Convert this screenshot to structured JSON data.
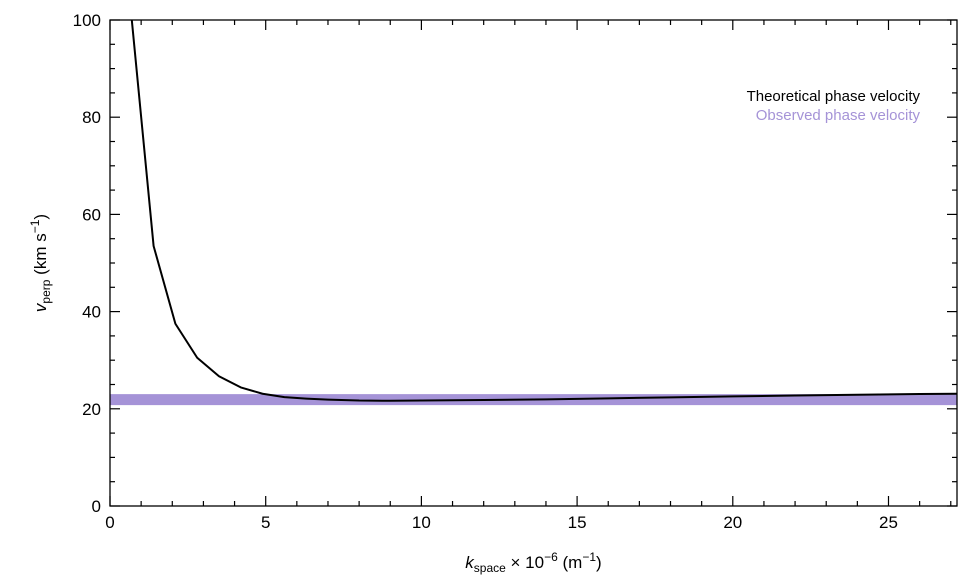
{
  "chart_data": {
    "type": "line",
    "xlabel": {
      "main": "k",
      "sub": "space",
      "rest": " × 10",
      "sup1": "−6",
      "unit_open": " (m",
      "sup2": "−1",
      "unit_close": ")"
    },
    "ylabel": {
      "main": "v",
      "sub": "perp",
      "unit_open": " (km s",
      "sup": "−1",
      "unit_close": ")"
    },
    "xlim": [
      0,
      27.2
    ],
    "ylim": [
      0,
      100
    ],
    "x_ticks": [
      {
        "value": 0,
        "label": "0"
      },
      {
        "value": 5,
        "label": "5"
      },
      {
        "value": 10,
        "label": "10"
      },
      {
        "value": 15,
        "label": "15"
      },
      {
        "value": 20,
        "label": "20"
      },
      {
        "value": 25,
        "label": "25"
      }
    ],
    "y_ticks": [
      {
        "value": 0,
        "label": "0"
      },
      {
        "value": 20,
        "label": "20"
      },
      {
        "value": 40,
        "label": "40"
      },
      {
        "value": 60,
        "label": "60"
      },
      {
        "value": 80,
        "label": "80"
      },
      {
        "value": 100,
        "label": "100"
      }
    ],
    "x_minor_step": 1,
    "y_minor_step": 5,
    "grid": false,
    "legend_position": "top-right",
    "series": [
      {
        "name": "Theoretical phase velocity",
        "color": "#000000",
        "x": [
          0.7,
          1.4,
          2.1,
          2.8,
          3.5,
          4.2,
          4.9,
          5.6,
          6.3,
          7.0,
          8.0,
          9.0,
          10.0,
          12.0,
          14.0,
          16.0,
          18.0,
          20.0,
          22.0,
          24.0,
          26.0,
          27.2
        ],
        "y": [
          100,
          53.5,
          37.5,
          30.5,
          26.7,
          24.4,
          23.1,
          22.4,
          22.1,
          21.9,
          21.7,
          21.65,
          21.7,
          21.8,
          21.95,
          22.15,
          22.35,
          22.55,
          22.75,
          22.9,
          23.05,
          23.1
        ]
      },
      {
        "name": "Observed phase velocity",
        "color": "#a593d7",
        "x": [
          0,
          27.2
        ],
        "y": [
          21.9,
          21.9
        ]
      }
    ]
  }
}
